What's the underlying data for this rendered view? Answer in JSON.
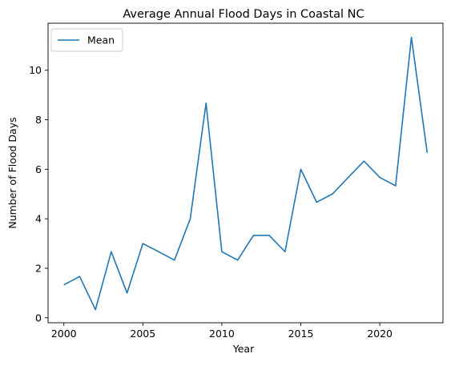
{
  "chart_data": {
    "type": "line",
    "title": "Average Annual Flood Days in Coastal NC",
    "xlabel": "Year",
    "ylabel": "Number of Flood Days",
    "xlim": [
      1999,
      2024
    ],
    "ylim": [
      -0.2,
      11.9
    ],
    "xticks": [
      2000,
      2005,
      2010,
      2015,
      2020
    ],
    "yticks": [
      0,
      2,
      4,
      6,
      8,
      10
    ],
    "grid": false,
    "legend_position": "top-left",
    "x": [
      2000,
      2001,
      2002,
      2003,
      2004,
      2005,
      2006,
      2007,
      2008,
      2009,
      2010,
      2011,
      2012,
      2013,
      2014,
      2015,
      2016,
      2017,
      2018,
      2019,
      2020,
      2021,
      2022,
      2023
    ],
    "series": [
      {
        "name": "Mean",
        "color": "#1f77b4",
        "values": [
          1.33,
          1.67,
          0.33,
          2.67,
          1.0,
          3.0,
          2.67,
          2.33,
          4.0,
          8.67,
          2.67,
          2.33,
          3.33,
          3.33,
          2.67,
          6.0,
          4.67,
          5.0,
          5.67,
          6.33,
          5.67,
          5.33,
          11.33,
          6.67
        ]
      }
    ]
  }
}
